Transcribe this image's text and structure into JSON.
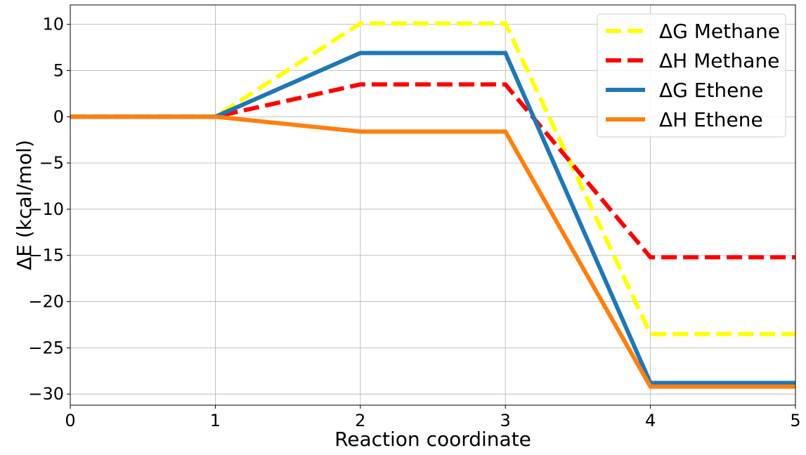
{
  "chart_data": {
    "type": "line",
    "xlabel": "Reaction coordinate",
    "ylabel": "ΔE (kcal/mol)",
    "xlim": [
      0,
      5
    ],
    "ylim": [
      -31.2,
      12.1
    ],
    "xticks": [
      0,
      1,
      2,
      3,
      4,
      5
    ],
    "yticks": [
      -30,
      -25,
      -20,
      -15,
      -10,
      -5,
      0,
      5,
      10
    ],
    "xtick_labels": [
      "0",
      "1",
      "2",
      "3",
      "4",
      "5"
    ],
    "ytick_labels": [
      "−30",
      "−25",
      "−20",
      "−15",
      "−10",
      "−5",
      "0",
      "5",
      "10"
    ],
    "grid": true,
    "legend_position": "top-right",
    "x": [
      0,
      1,
      2,
      3,
      4,
      5
    ],
    "series": [
      {
        "name": "ΔG Methane",
        "values": [
          0,
          0,
          10.1,
          10.1,
          -23.5,
          -23.5
        ],
        "color": "#ffff00",
        "style": "dashed"
      },
      {
        "name": "ΔH Methane",
        "values": [
          0,
          0,
          3.5,
          3.5,
          -15.2,
          -15.2
        ],
        "color": "#ff0000",
        "style": "dashed"
      },
      {
        "name": "ΔG Ethene",
        "values": [
          0,
          0,
          6.9,
          6.9,
          -28.8,
          -28.8
        ],
        "color": "#1f77b4",
        "style": "solid"
      },
      {
        "name": "ΔH Ethene",
        "values": [
          0,
          0,
          -1.6,
          -1.6,
          -29.2,
          -29.2
        ],
        "color": "#ff7f0e",
        "style": "solid"
      }
    ]
  }
}
